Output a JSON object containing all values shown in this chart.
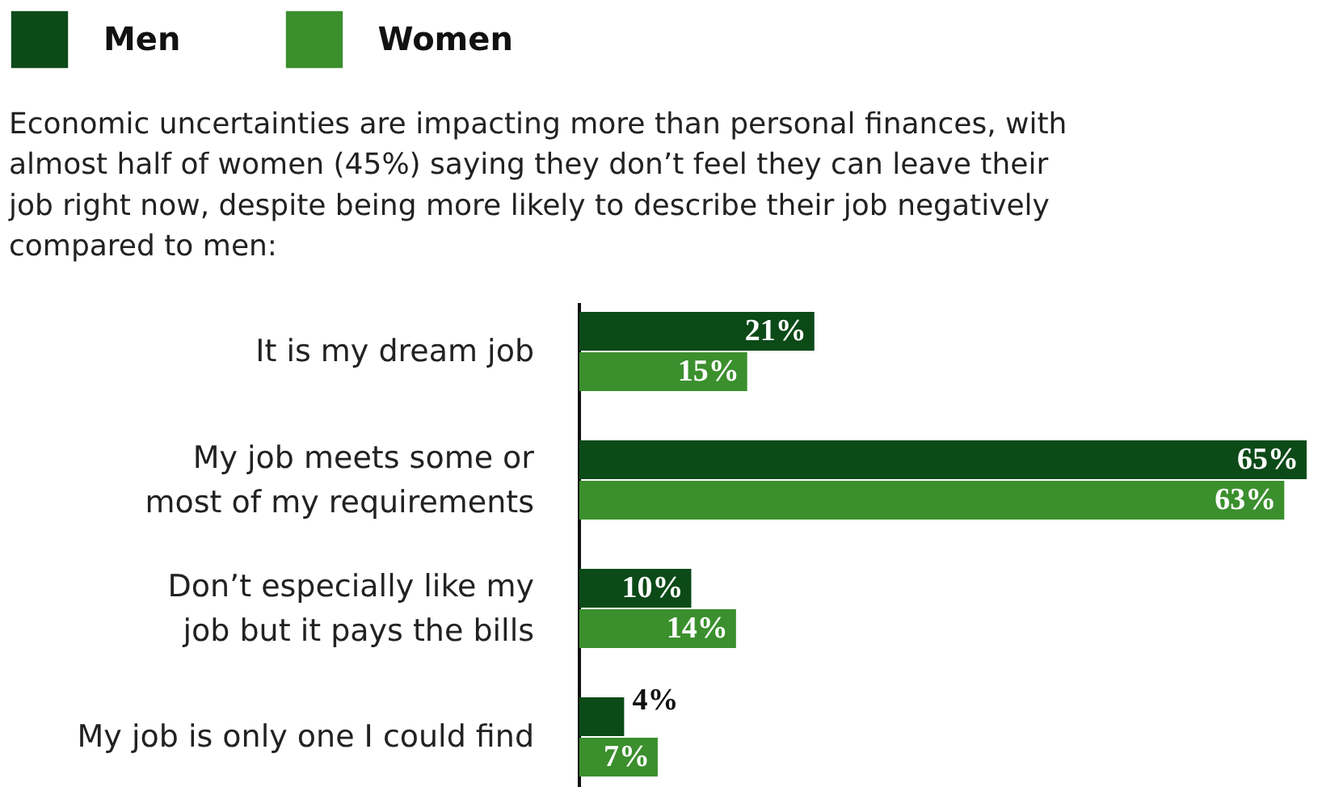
{
  "chart_data": {
    "type": "bar",
    "orientation": "horizontal",
    "subtitle": "Economic uncertainties are impacting more than personal finances, with almost half of women (45%) saying they don’t feel they can leave their job right now, despite being more likely to describe their job negatively compared to men:",
    "categories": [
      "It is my dream job",
      "My job meets some or\nmost of my requirements",
      "Don’t especially like my\njob but it pays the bills",
      "My job is only one I could find"
    ],
    "series": [
      {
        "name": "Men",
        "color": "#0c4a18",
        "values": [
          21,
          65,
          10,
          4
        ],
        "value_labels": [
          "21%",
          "65%",
          "10%",
          "4%"
        ]
      },
      {
        "name": "Women",
        "color": "#3b8f2d",
        "values": [
          15,
          63,
          14,
          7
        ],
        "value_labels": [
          "15%",
          "63%",
          "14%",
          "7%"
        ]
      }
    ],
    "legend": "top left",
    "grid": false
  }
}
